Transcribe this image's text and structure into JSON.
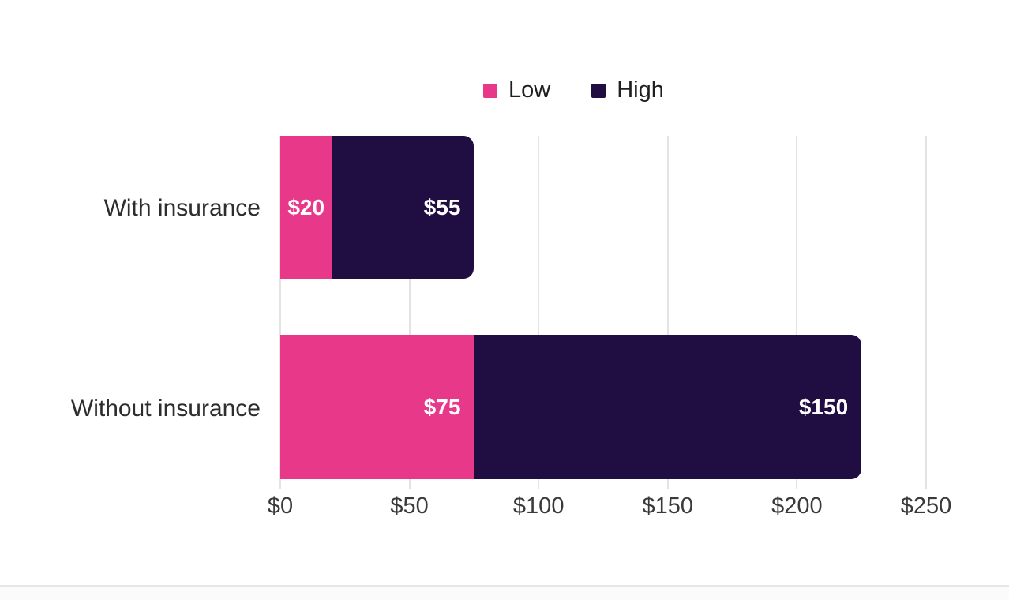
{
  "chart_data": {
    "type": "bar",
    "orientation": "horizontal",
    "stacked": true,
    "categories": [
      "With insurance",
      "Without insurance"
    ],
    "series": [
      {
        "name": "Low",
        "color": "#E8388A",
        "values": [
          20,
          75
        ]
      },
      {
        "name": "High",
        "color": "#200D41",
        "values": [
          55,
          150
        ]
      }
    ],
    "data_labels": [
      [
        "$20",
        "$55"
      ],
      [
        "$75",
        "$150"
      ]
    ],
    "label_align": [
      [
        "center",
        "end"
      ],
      [
        "end",
        "end"
      ]
    ],
    "data_label_color": "#FFFFFF",
    "x_axis": {
      "min": 0,
      "max": 250,
      "ticks": [
        {
          "value": 0,
          "label": "$0"
        },
        {
          "value": 50,
          "label": "$50"
        },
        {
          "value": 100,
          "label": "$100"
        },
        {
          "value": 150,
          "label": "$150"
        },
        {
          "value": 200,
          "label": "$200"
        },
        {
          "value": 250,
          "label": "$250"
        }
      ]
    },
    "grid": true,
    "gridline_color": "#E3E3E3",
    "legend_position": "top",
    "background_color": "#FFFFFF"
  }
}
